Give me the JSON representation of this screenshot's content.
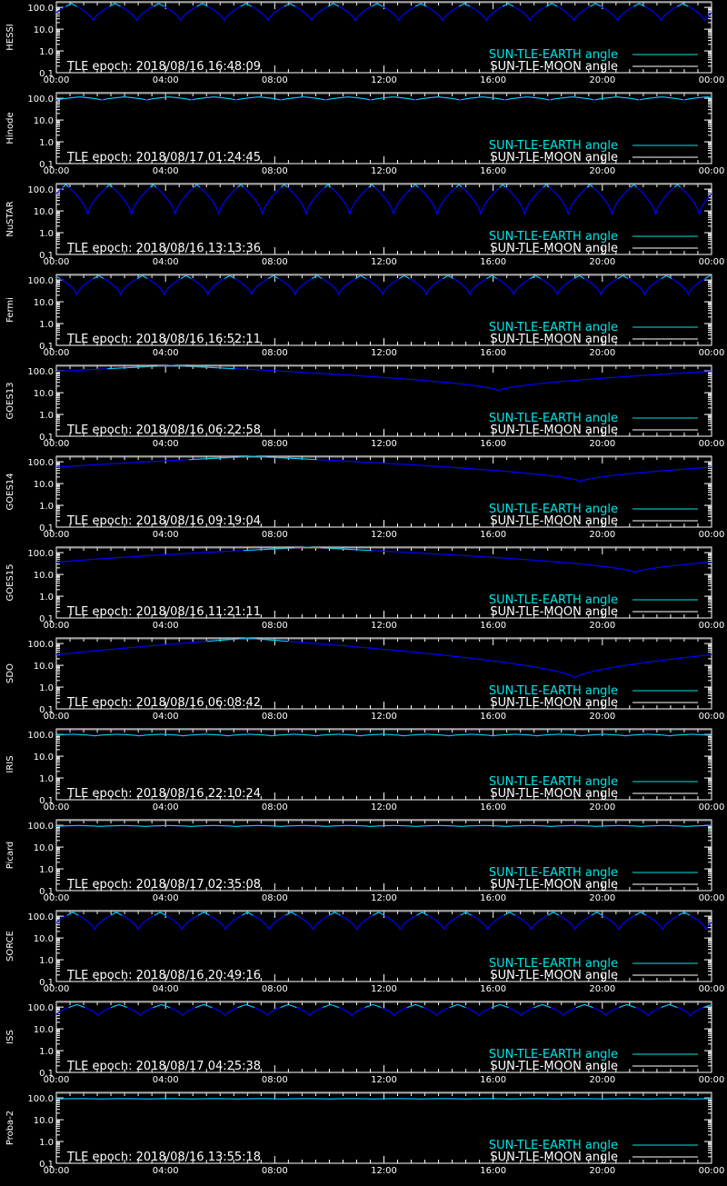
{
  "colors": {
    "background": "#000000",
    "axis": "#ffffff",
    "earth": "#00e5e5",
    "moon": "#ffffff",
    "curve": "#0000ff"
  },
  "legend": {
    "earth_label": "SUN-TLE-EARTH angle",
    "moon_label": "SUN-TLE-MOON angle"
  },
  "chart_data": [
    {
      "type": "line",
      "ylabel": "HESSI",
      "epoch_text": "TLE epoch: 2018/08/16 16:48:09",
      "xlim_hours": [
        0,
        24
      ],
      "x_ticks": [
        "00:00",
        "04:00",
        "08:00",
        "12:00",
        "16:00",
        "20:00",
        "00:00"
      ],
      "y_ticks": [
        "100.0",
        "10.0",
        "1.0",
        "0.1"
      ],
      "ylim": [
        0.1,
        180
      ],
      "yscale": "log",
      "orbit_period_hours": 1.6,
      "phase_hours": 0.55,
      "max_angle": 150,
      "min_angle": 22
    },
    {
      "type": "line",
      "ylabel": "Hinode",
      "epoch_text": "TLE epoch: 2018/08/17 01:24:45",
      "xlim_hours": [
        0,
        24
      ],
      "x_ticks": [
        "00:00",
        "04:00",
        "08:00",
        "12:00",
        "16:00",
        "20:00",
        "00:00"
      ],
      "y_ticks": [
        "100.0",
        "10.0",
        "1.0",
        "0.1"
      ],
      "ylim": [
        0.1,
        180
      ],
      "yscale": "log",
      "orbit_period_hours": 1.64,
      "phase_hours": 0.85,
      "max_angle": 115,
      "min_angle": 80
    },
    {
      "type": "line",
      "ylabel": "NuSTAR",
      "epoch_text": "TLE epoch: 2018/08/16 13:13:36",
      "xlim_hours": [
        0,
        24
      ],
      "x_ticks": [
        "00:00",
        "04:00",
        "08:00",
        "12:00",
        "16:00",
        "20:00",
        "00:00"
      ],
      "y_ticks": [
        "100.0",
        "10.0",
        "1.0",
        "0.1"
      ],
      "ylim": [
        0.1,
        180
      ],
      "yscale": "log",
      "orbit_period_hours": 1.6,
      "phase_hours": 0.35,
      "max_angle": 160,
      "min_angle": 6
    },
    {
      "type": "line",
      "ylabel": "Fermi",
      "epoch_text": "TLE epoch: 2018/08/16 16:52:11",
      "xlim_hours": [
        0,
        24
      ],
      "x_ticks": [
        "00:00",
        "04:00",
        "08:00",
        "12:00",
        "16:00",
        "20:00",
        "00:00"
      ],
      "y_ticks": [
        "100.0",
        "10.0",
        "1.0",
        "0.1"
      ],
      "ylim": [
        0.1,
        180
      ],
      "yscale": "log",
      "orbit_period_hours": 1.6,
      "phase_hours": 1.55,
      "max_angle": 158,
      "min_angle": 20
    },
    {
      "type": "line",
      "ylabel": "GOES13",
      "epoch_text": "TLE epoch: 2018/08/16 06:22:58",
      "xlim_hours": [
        0,
        24
      ],
      "x_ticks": [
        "00:00",
        "04:00",
        "08:00",
        "12:00",
        "16:00",
        "20:00",
        "00:00"
      ],
      "y_ticks": [
        "100.0",
        "10.0",
        "1.0",
        "0.1"
      ],
      "ylim": [
        0.1,
        180
      ],
      "yscale": "log",
      "orbit_period_hours": 24,
      "phase_hours": 4.2,
      "max_angle": 175,
      "min_angle": 12
    },
    {
      "type": "line",
      "ylabel": "GOES14",
      "epoch_text": "TLE epoch: 2018/08/16 09:19:04",
      "xlim_hours": [
        0,
        24
      ],
      "x_ticks": [
        "00:00",
        "04:00",
        "08:00",
        "12:00",
        "16:00",
        "20:00",
        "00:00"
      ],
      "y_ticks": [
        "100.0",
        "10.0",
        "1.0",
        "0.1"
      ],
      "ylim": [
        0.1,
        180
      ],
      "yscale": "log",
      "orbit_period_hours": 24,
      "phase_hours": 7.2,
      "max_angle": 175,
      "min_angle": 12
    },
    {
      "type": "line",
      "ylabel": "GOES15",
      "epoch_text": "TLE epoch: 2018/08/16 11:21:11",
      "xlim_hours": [
        0,
        24
      ],
      "x_ticks": [
        "00:00",
        "04:00",
        "08:00",
        "12:00",
        "16:00",
        "20:00",
        "00:00"
      ],
      "y_ticks": [
        "100.0",
        "10.0",
        "1.0",
        "0.1"
      ],
      "ylim": [
        0.1,
        180
      ],
      "yscale": "log",
      "orbit_period_hours": 24,
      "phase_hours": 9.2,
      "max_angle": 175,
      "min_angle": 12
    },
    {
      "type": "line",
      "ylabel": "SDO",
      "epoch_text": "TLE epoch: 2018/08/16 06:08:42",
      "xlim_hours": [
        0,
        24
      ],
      "x_ticks": [
        "00:00",
        "04:00",
        "08:00",
        "12:00",
        "16:00",
        "20:00",
        "00:00"
      ],
      "y_ticks": [
        "100.0",
        "10.0",
        "1.0",
        "0.1"
      ],
      "ylim": [
        0.1,
        180
      ],
      "yscale": "log",
      "orbit_period_hours": 24,
      "phase_hours": 7.0,
      "max_angle": 175,
      "min_angle": 2.5
    },
    {
      "type": "line",
      "ylabel": "IRIS",
      "epoch_text": "TLE epoch: 2018/08/16 22:10:24",
      "xlim_hours": [
        0,
        24
      ],
      "x_ticks": [
        "00:00",
        "04:00",
        "08:00",
        "12:00",
        "16:00",
        "20:00",
        "00:00"
      ],
      "y_ticks": [
        "100.0",
        "10.0",
        "1.0",
        "0.1"
      ],
      "ylim": [
        0.1,
        180
      ],
      "yscale": "log",
      "orbit_period_hours": 1.62,
      "phase_hours": 0.6,
      "max_angle": 102,
      "min_angle": 85
    },
    {
      "type": "line",
      "ylabel": "Picard",
      "epoch_text": "TLE epoch: 2018/08/17 02:35:08",
      "xlim_hours": [
        0,
        24
      ],
      "x_ticks": [
        "00:00",
        "04:00",
        "08:00",
        "12:00",
        "16:00",
        "20:00",
        "00:00"
      ],
      "y_ticks": [
        "100.0",
        "10.0",
        "1.0",
        "0.1"
      ],
      "ylim": [
        0.1,
        180
      ],
      "yscale": "log",
      "orbit_period_hours": 1.65,
      "phase_hours": 0.8,
      "max_angle": 98,
      "min_angle": 88
    },
    {
      "type": "line",
      "ylabel": "SORCE",
      "epoch_text": "TLE epoch: 2018/08/16 20:49:16",
      "xlim_hours": [
        0,
        24
      ],
      "x_ticks": [
        "00:00",
        "04:00",
        "08:00",
        "12:00",
        "16:00",
        "20:00",
        "00:00"
      ],
      "y_ticks": [
        "100.0",
        "10.0",
        "1.0",
        "0.1"
      ],
      "ylim": [
        0.1,
        180
      ],
      "yscale": "log",
      "orbit_period_hours": 1.6,
      "phase_hours": 0.6,
      "max_angle": 150,
      "min_angle": 22
    },
    {
      "type": "line",
      "ylabel": "ISS",
      "epoch_text": "TLE epoch: 2018/08/17 04:25:38",
      "xlim_hours": [
        0,
        24
      ],
      "x_ticks": [
        "00:00",
        "04:00",
        "08:00",
        "12:00",
        "16:00",
        "20:00",
        "00:00"
      ],
      "y_ticks": [
        "100.0",
        "10.0",
        "1.0",
        "0.1"
      ],
      "ylim": [
        0.1,
        180
      ],
      "yscale": "log",
      "orbit_period_hours": 1.55,
      "phase_hours": 0.75,
      "max_angle": 130,
      "min_angle": 38
    },
    {
      "type": "line",
      "ylabel": "Proba-2",
      "epoch_text": "TLE epoch: 2018/08/16 13:55:18",
      "xlim_hours": [
        0,
        24
      ],
      "x_ticks": [
        "00:00",
        "04:00",
        "08:00",
        "12:00",
        "16:00",
        "20:00",
        "00:00"
      ],
      "y_ticks": [
        "100.0",
        "10.0",
        "1.0",
        "0.1"
      ],
      "ylim": [
        0.1,
        180
      ],
      "yscale": "log",
      "orbit_period_hours": 1.67,
      "phase_hours": 0.8,
      "max_angle": 93,
      "min_angle": 90
    }
  ]
}
